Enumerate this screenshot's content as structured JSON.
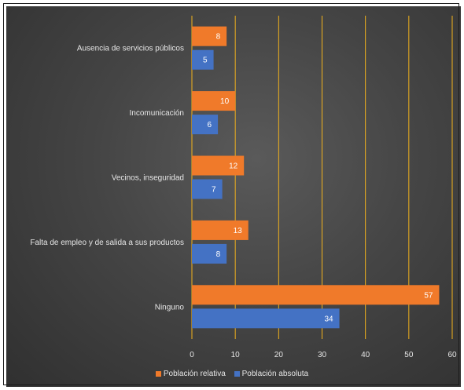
{
  "chart_data": {
    "type": "bar",
    "orientation": "horizontal",
    "categories": [
      "Ausencia de servicios públicos",
      "Incomunicación",
      "Vecinos, inseguridad",
      "Falta de empleo y de salida a sus productos",
      "Ninguno"
    ],
    "series": [
      {
        "name": "Población relativa",
        "color": "#f07a2a",
        "values": [
          8,
          10,
          12,
          13,
          57
        ]
      },
      {
        "name": "Población absoluta",
        "color": "#4472c4",
        "values": [
          5,
          6,
          7,
          8,
          34
        ]
      }
    ],
    "title": "",
    "xlabel": "",
    "ylabel": "",
    "xlim": [
      0,
      60
    ],
    "xticks": [
      0,
      10,
      20,
      30,
      40,
      50,
      60
    ],
    "grid": "vertical",
    "grid_color": "#f2b21c",
    "legend": "bottom"
  }
}
